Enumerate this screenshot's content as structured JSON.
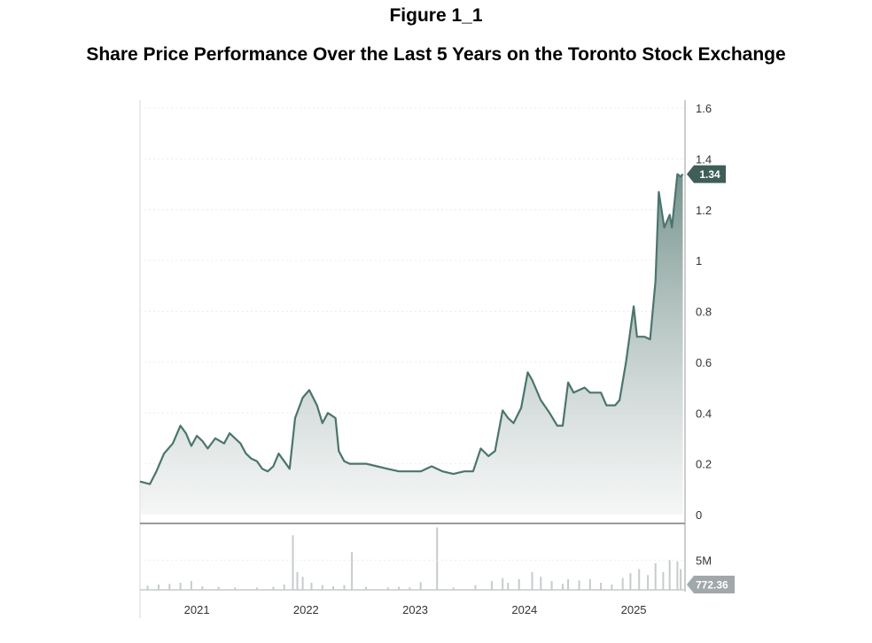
{
  "figure": {
    "label": "Figure 1_1",
    "title": "Share Price Performance Over the Last 5 Years on the Toronto Stock Exchange"
  },
  "colors": {
    "price_line": "#4b756c",
    "last_tag": "#3e5e57",
    "volume_bar": "#c6cbcc",
    "volume_tag": "#a0a8aa"
  },
  "chart_data": {
    "type": "area",
    "x_ticks": [
      "2021",
      "2022",
      "2023",
      "2024",
      "2025"
    ],
    "price": {
      "ylim": [
        0,
        1.6
      ],
      "y_ticks": [
        "0",
        "0.2",
        "0.4",
        "0.6",
        "0.8",
        "1",
        "1.2",
        "1.4",
        "1.6"
      ],
      "last_value": "1.34",
      "points": [
        [
          2020.63,
          0.13
        ],
        [
          2020.72,
          0.12
        ],
        [
          2020.78,
          0.17
        ],
        [
          2020.85,
          0.24
        ],
        [
          2020.93,
          0.28
        ],
        [
          2021.0,
          0.35
        ],
        [
          2021.05,
          0.32
        ],
        [
          2021.1,
          0.27
        ],
        [
          2021.15,
          0.31
        ],
        [
          2021.2,
          0.29
        ],
        [
          2021.25,
          0.26
        ],
        [
          2021.32,
          0.3
        ],
        [
          2021.4,
          0.28
        ],
        [
          2021.45,
          0.32
        ],
        [
          2021.55,
          0.28
        ],
        [
          2021.6,
          0.24
        ],
        [
          2021.65,
          0.22
        ],
        [
          2021.7,
          0.21
        ],
        [
          2021.75,
          0.18
        ],
        [
          2021.8,
          0.17
        ],
        [
          2021.85,
          0.19
        ],
        [
          2021.9,
          0.24
        ],
        [
          2021.95,
          0.21
        ],
        [
          2022.0,
          0.18
        ],
        [
          2022.05,
          0.38
        ],
        [
          2022.12,
          0.46
        ],
        [
          2022.18,
          0.49
        ],
        [
          2022.25,
          0.43
        ],
        [
          2022.3,
          0.36
        ],
        [
          2022.35,
          0.4
        ],
        [
          2022.42,
          0.38
        ],
        [
          2022.45,
          0.25
        ],
        [
          2022.5,
          0.21
        ],
        [
          2022.55,
          0.2
        ],
        [
          2022.7,
          0.2
        ],
        [
          2022.8,
          0.19
        ],
        [
          2022.9,
          0.18
        ],
        [
          2023.0,
          0.17
        ],
        [
          2023.1,
          0.17
        ],
        [
          2023.2,
          0.17
        ],
        [
          2023.3,
          0.19
        ],
        [
          2023.4,
          0.17
        ],
        [
          2023.5,
          0.16
        ],
        [
          2023.6,
          0.17
        ],
        [
          2023.68,
          0.17
        ],
        [
          2023.75,
          0.26
        ],
        [
          2023.82,
          0.23
        ],
        [
          2023.88,
          0.25
        ],
        [
          2023.95,
          0.41
        ],
        [
          2024.0,
          0.38
        ],
        [
          2024.05,
          0.36
        ],
        [
          2024.12,
          0.42
        ],
        [
          2024.18,
          0.56
        ],
        [
          2024.22,
          0.53
        ],
        [
          2024.3,
          0.45
        ],
        [
          2024.38,
          0.4
        ],
        [
          2024.45,
          0.35
        ],
        [
          2024.5,
          0.35
        ],
        [
          2024.55,
          0.52
        ],
        [
          2024.6,
          0.48
        ],
        [
          2024.7,
          0.5
        ],
        [
          2024.75,
          0.48
        ],
        [
          2024.85,
          0.48
        ],
        [
          2024.9,
          0.43
        ],
        [
          2024.98,
          0.43
        ],
        [
          2025.02,
          0.45
        ],
        [
          2025.08,
          0.6
        ],
        [
          2025.15,
          0.82
        ],
        [
          2025.18,
          0.7
        ],
        [
          2025.25,
          0.7
        ],
        [
          2025.3,
          0.69
        ],
        [
          2025.35,
          0.92
        ],
        [
          2025.38,
          1.27
        ],
        [
          2025.43,
          1.13
        ],
        [
          2025.48,
          1.18
        ],
        [
          2025.5,
          1.13
        ],
        [
          2025.55,
          1.34
        ],
        [
          2025.58,
          1.33
        ],
        [
          2025.6,
          1.34
        ]
      ]
    },
    "volume": {
      "y_ticks": [
        "5M"
      ],
      "last_value": "772.36",
      "ylim": [
        0,
        10000000
      ],
      "bars": [
        [
          2020.7,
          0.7
        ],
        [
          2020.8,
          0.9
        ],
        [
          2020.9,
          1.0
        ],
        [
          2021.0,
          1.2
        ],
        [
          2021.1,
          1.5
        ],
        [
          2021.2,
          0.6
        ],
        [
          2021.35,
          0.5
        ],
        [
          2021.5,
          0.4
        ],
        [
          2021.7,
          0.4
        ],
        [
          2021.85,
          0.5
        ],
        [
          2021.95,
          0.9
        ],
        [
          2022.03,
          9.2
        ],
        [
          2022.07,
          3.0
        ],
        [
          2022.12,
          2.2
        ],
        [
          2022.2,
          1.2
        ],
        [
          2022.3,
          0.8
        ],
        [
          2022.4,
          0.6
        ],
        [
          2022.5,
          0.8
        ],
        [
          2022.57,
          6.4
        ],
        [
          2022.7,
          0.5
        ],
        [
          2022.9,
          0.4
        ],
        [
          2023.0,
          0.5
        ],
        [
          2023.1,
          0.4
        ],
        [
          2023.2,
          1.3
        ],
        [
          2023.35,
          10.5
        ],
        [
          2023.5,
          0.4
        ],
        [
          2023.7,
          0.8
        ],
        [
          2023.85,
          1.5
        ],
        [
          2023.95,
          2.0
        ],
        [
          2024.0,
          1.2
        ],
        [
          2024.1,
          1.8
        ],
        [
          2024.22,
          3.0
        ],
        [
          2024.3,
          2.2
        ],
        [
          2024.4,
          1.5
        ],
        [
          2024.5,
          1.0
        ],
        [
          2024.55,
          1.8
        ],
        [
          2024.65,
          1.6
        ],
        [
          2024.75,
          1.8
        ],
        [
          2024.85,
          1.2
        ],
        [
          2024.95,
          0.9
        ],
        [
          2025.05,
          2.0
        ],
        [
          2025.12,
          2.8
        ],
        [
          2025.2,
          3.5
        ],
        [
          2025.28,
          2.5
        ],
        [
          2025.35,
          4.5
        ],
        [
          2025.42,
          3.0
        ],
        [
          2025.48,
          5.0
        ],
        [
          2025.55,
          4.8
        ],
        [
          2025.58,
          3.5
        ]
      ]
    }
  }
}
